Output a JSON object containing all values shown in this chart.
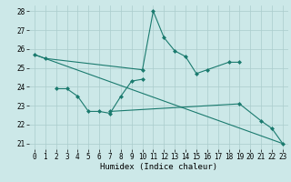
{
  "xlabel": "Humidex (Indice chaleur)",
  "bg_color": "#cce8e8",
  "grid_color": "#aacccc",
  "line_color": "#1a7a6e",
  "xlim": [
    -0.5,
    23.5
  ],
  "ylim": [
    20.7,
    28.3
  ],
  "yticks": [
    21,
    22,
    23,
    24,
    25,
    26,
    27,
    28
  ],
  "xticks": [
    0,
    1,
    2,
    3,
    4,
    5,
    6,
    7,
    8,
    9,
    10,
    11,
    12,
    13,
    14,
    15,
    16,
    17,
    18,
    19,
    20,
    21,
    22,
    23
  ],
  "line1_x": [
    0,
    1,
    10,
    11,
    12,
    13,
    14,
    15,
    16,
    18,
    19
  ],
  "line1_y": [
    25.7,
    25.5,
    24.9,
    28.0,
    26.6,
    25.9,
    25.6,
    24.7,
    24.9,
    25.3,
    25.3
  ],
  "line2_x": [
    2,
    3,
    4,
    5,
    6,
    7,
    8,
    9,
    10
  ],
  "line2_y": [
    23.9,
    23.9,
    23.5,
    22.7,
    22.7,
    22.6,
    23.5,
    24.3,
    24.4
  ],
  "line3_x": [
    7,
    19,
    21,
    22,
    23
  ],
  "line3_y": [
    22.7,
    23.1,
    22.2,
    21.8,
    21.0
  ],
  "line4_x": [
    0,
    23
  ],
  "line4_y": [
    25.7,
    21.0
  ]
}
